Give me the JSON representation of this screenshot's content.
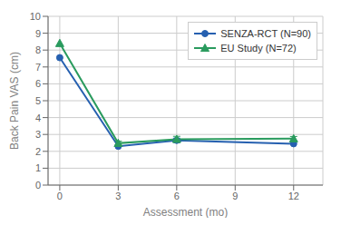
{
  "chart_data": {
    "type": "line",
    "xlabel": "Assessment (mo)",
    "ylabel": "Back Pain VAS (cm)",
    "x": [
      0,
      3,
      6,
      12
    ],
    "series": [
      {
        "name": "SENZA-RCT (N=90)",
        "color": "#2660b0",
        "marker": "circle",
        "values": [
          7.55,
          2.3,
          2.65,
          2.45
        ],
        "errors": [
          0.0,
          0.0,
          0.13,
          0.0
        ]
      },
      {
        "name": "EU Study (N=72)",
        "color": "#2a9b5e",
        "marker": "triangle",
        "values": [
          8.4,
          2.48,
          2.72,
          2.75
        ],
        "errors": [
          0.0,
          0.12,
          0.17,
          0.13
        ]
      }
    ],
    "xlim": [
      -0.6,
      13.5
    ],
    "ylim": [
      0,
      10
    ],
    "xticks": [
      0,
      3,
      6,
      9,
      12
    ],
    "yticks": [
      0,
      1,
      2,
      3,
      4,
      5,
      6,
      7,
      8,
      9,
      10
    ],
    "grid": true,
    "legend": "upper right"
  }
}
